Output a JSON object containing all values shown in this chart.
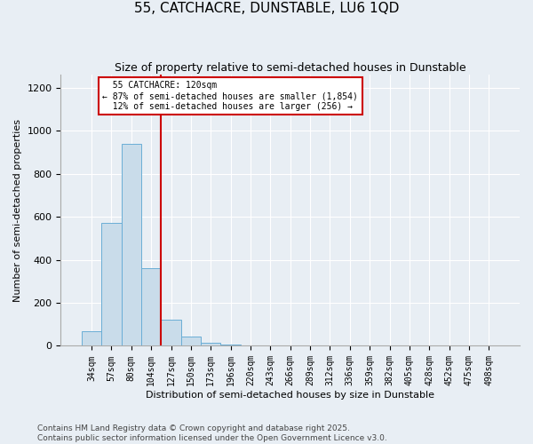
{
  "title1": "55, CATCHACRE, DUNSTABLE, LU6 1QD",
  "title2": "Size of property relative to semi-detached houses in Dunstable",
  "xlabel": "Distribution of semi-detached houses by size in Dunstable",
  "ylabel": "Number of semi-detached properties",
  "footnote1": "Contains HM Land Registry data © Crown copyright and database right 2025.",
  "footnote2": "Contains public sector information licensed under the Open Government Licence v3.0.",
  "bar_labels": [
    "34sqm",
    "57sqm",
    "80sqm",
    "104sqm",
    "127sqm",
    "150sqm",
    "173sqm",
    "196sqm",
    "220sqm",
    "243sqm",
    "266sqm",
    "289sqm",
    "312sqm",
    "336sqm",
    "359sqm",
    "382sqm",
    "405sqm",
    "428sqm",
    "452sqm",
    "475sqm",
    "498sqm"
  ],
  "bar_values": [
    70,
    570,
    940,
    360,
    120,
    45,
    13,
    8,
    0,
    0,
    0,
    0,
    0,
    0,
    0,
    0,
    0,
    0,
    0,
    0,
    0
  ],
  "bar_color": "#c9dcea",
  "bar_edge_color": "#6aaed6",
  "bar_edge_width": 0.7,
  "red_line_color": "#cc0000",
  "red_line_x": 3.5,
  "annotation_text": "  55 CATCHACRE: 120sqm\n← 87% of semi-detached houses are smaller (1,854)\n  12% of semi-detached houses are larger (256) →",
  "annotation_box_color": "#ffffff",
  "annotation_box_edge": "#cc0000",
  "ylim": [
    0,
    1260
  ],
  "yticks": [
    0,
    200,
    400,
    600,
    800,
    1000,
    1200
  ],
  "background_color": "#e8eef4",
  "plot_bg_color": "#e8eef4",
  "grid_color": "#ffffff",
  "title1_fontsize": 11,
  "title2_fontsize": 9,
  "axis_label_fontsize": 8,
  "tick_fontsize": 7,
  "footnote_fontsize": 6.5
}
